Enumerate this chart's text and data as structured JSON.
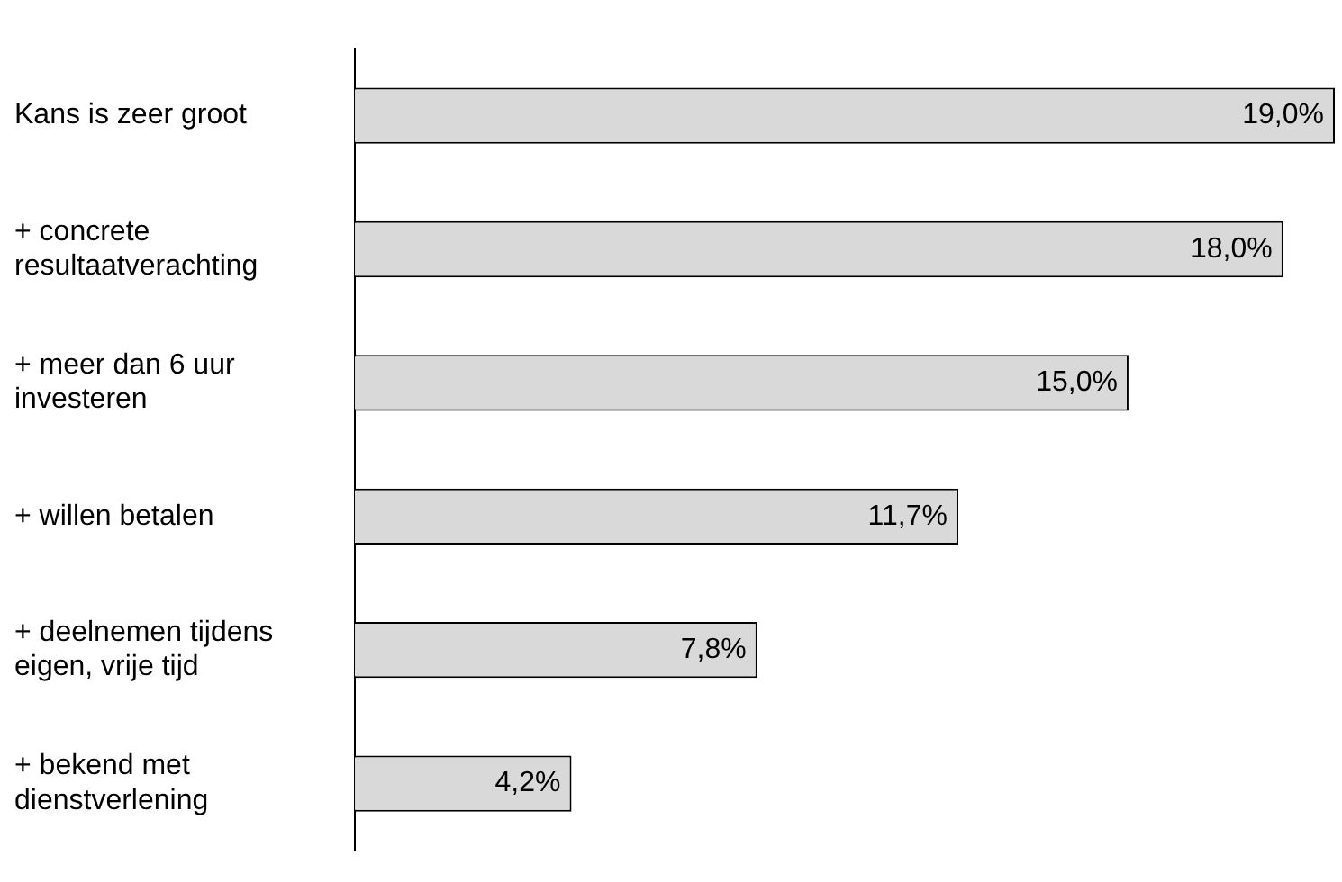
{
  "chart_data": {
    "type": "bar",
    "orientation": "horizontal",
    "tick_labels": "y",
    "categories": [
      "Kans is zeer groot",
      "+ concrete resultaatverachting",
      "+ meer dan 6 uur investeren",
      "+ willen betalen",
      "+ deelnemen tijdens eigen, vrije tijd",
      "+ bekend met dienstverlening"
    ],
    "values": [
      19.0,
      18.0,
      15.0,
      11.7,
      7.8,
      4.2
    ],
    "value_labels": [
      "19,0%",
      "18,0%",
      "15,0%",
      "11,7%",
      "7,8%",
      "4,2%"
    ],
    "color": "#d9d9d9"
  }
}
